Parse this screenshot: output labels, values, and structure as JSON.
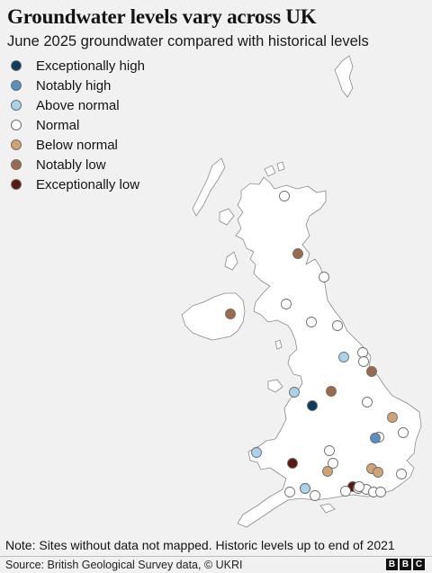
{
  "title": "Groundwater levels vary across UK",
  "subtitle": "June 2025 groundwater compared with historical levels",
  "legend": [
    {
      "key": "exceptionally_high",
      "label": "Exceptionally high",
      "color": "#0c3c5e"
    },
    {
      "key": "notably_high",
      "label": "Notably high",
      "color": "#5b8fbf"
    },
    {
      "key": "above_normal",
      "label": "Above normal",
      "color": "#a9d3ec"
    },
    {
      "key": "normal",
      "label": "Normal",
      "color": "#ffffff"
    },
    {
      "key": "below_normal",
      "label": "Below normal",
      "color": "#d1a272"
    },
    {
      "key": "notably_low",
      "label": "Notably low",
      "color": "#9b6a4d"
    },
    {
      "key": "exceptionally_low",
      "label": "Exceptionally low",
      "color": "#5a1a12"
    }
  ],
  "sites": [
    {
      "status": "normal"
    },
    {
      "status": "notably_low"
    },
    {
      "status": "normal"
    },
    {
      "status": "normal"
    },
    {
      "status": "notably_low"
    },
    {
      "status": "normal"
    },
    {
      "status": "normal"
    },
    {
      "status": "above_normal"
    },
    {
      "status": "normal"
    },
    {
      "status": "normal"
    },
    {
      "status": "notably_low"
    },
    {
      "status": "above_normal"
    },
    {
      "status": "notably_low"
    },
    {
      "status": "exceptionally_high"
    },
    {
      "status": "normal"
    },
    {
      "status": "below_normal"
    },
    {
      "status": "normal"
    },
    {
      "status": "notably_high"
    },
    {
      "status": "normal"
    },
    {
      "status": "above_normal"
    },
    {
      "status": "normal"
    },
    {
      "status": "exceptionally_low"
    },
    {
      "status": "normal"
    },
    {
      "status": "below_normal"
    },
    {
      "status": "below_normal"
    },
    {
      "status": "normal"
    },
    {
      "status": "below_normal"
    },
    {
      "status": "normal"
    },
    {
      "status": "normal"
    },
    {
      "status": "normal"
    },
    {
      "status": "exceptionally_low"
    },
    {
      "status": "normal"
    },
    {
      "status": "above_normal"
    },
    {
      "status": "normal"
    },
    {
      "status": "normal"
    },
    {
      "status": "normal"
    },
    {
      "status": "normal"
    },
    {
      "status": "normal"
    }
  ],
  "note": "Note: Sites without data not mapped. Historic levels up to end of 2021",
  "source": "Source: British Geological Survey data, © UKRI",
  "logo_letters": [
    "B",
    "B",
    "C"
  ]
}
